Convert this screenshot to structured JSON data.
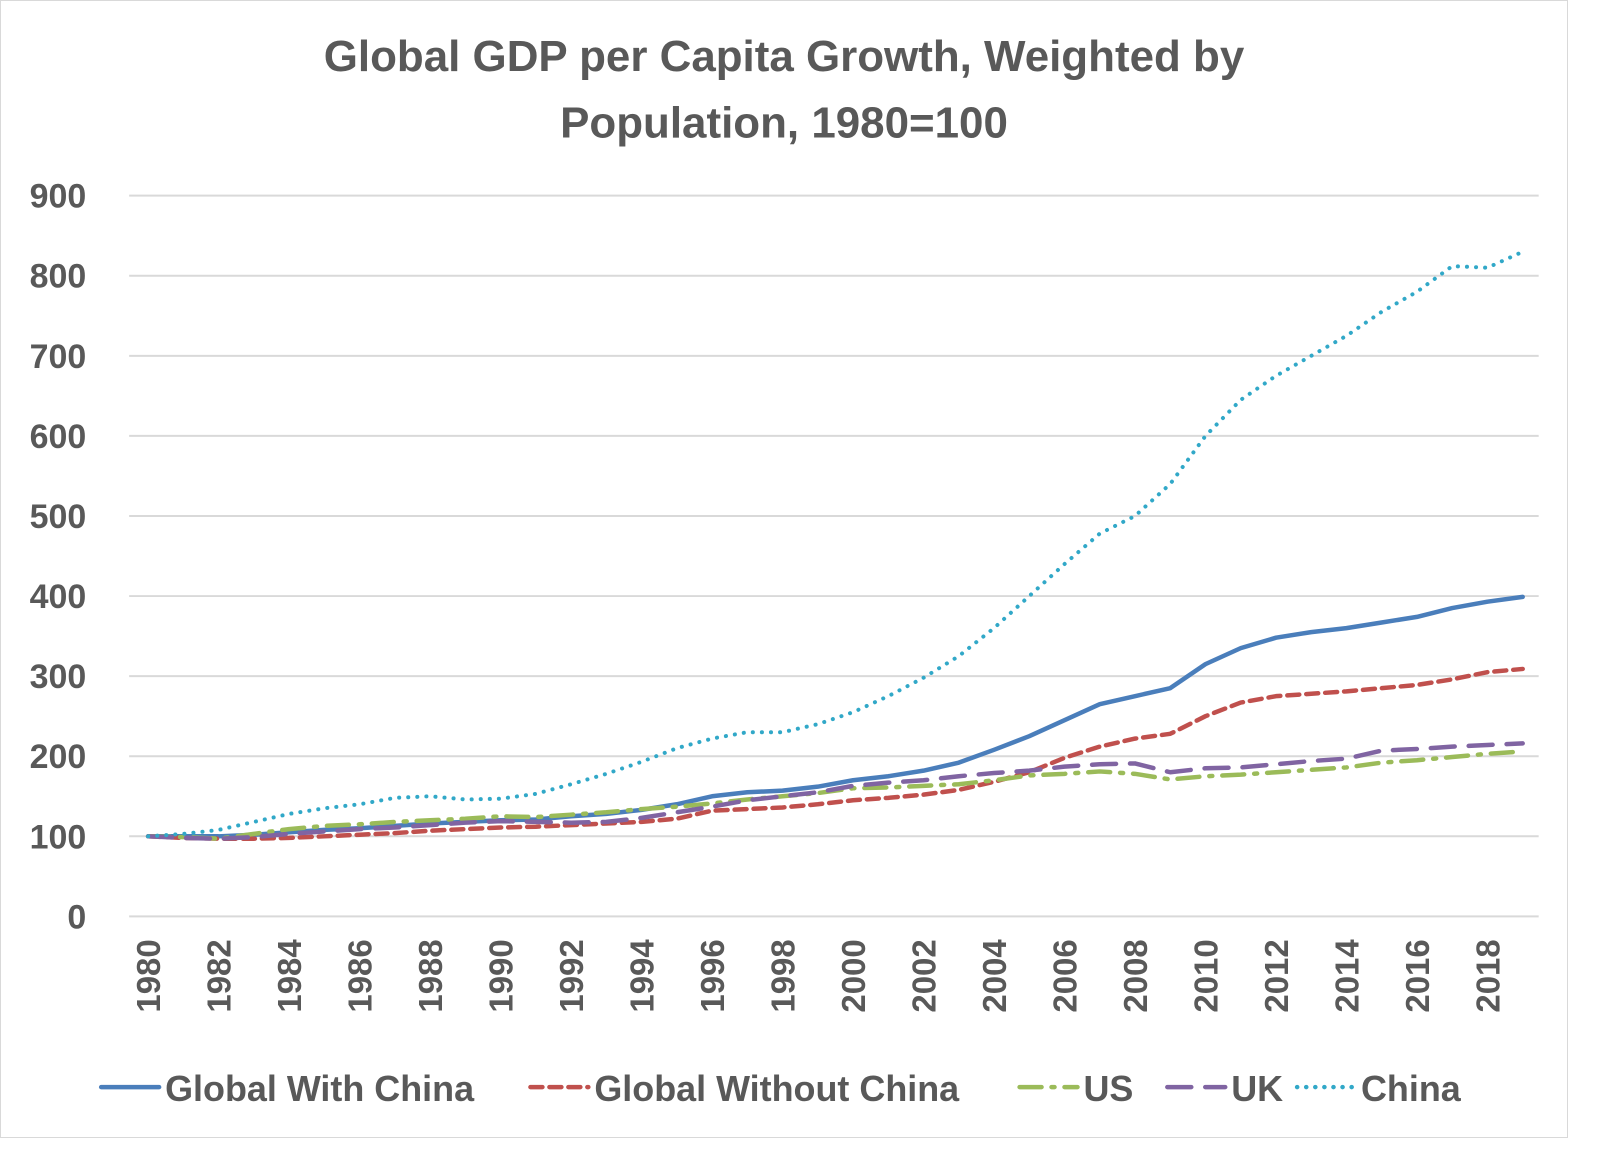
{
  "chart_data": {
    "type": "line",
    "title": "Global GDP per Capita Growth, Weighted by Population, 1980=100",
    "title_lines": [
      "Global GDP per Capita Growth, Weighted by",
      "Population, 1980=100"
    ],
    "xlabel": "",
    "ylabel": "",
    "ylim": [
      0,
      900
    ],
    "yticks": [
      "0",
      "100",
      "200",
      "300",
      "400",
      "500",
      "600",
      "700",
      "800",
      "900"
    ],
    "x": [
      1980,
      1981,
      1982,
      1983,
      1984,
      1985,
      1986,
      1987,
      1988,
      1989,
      1990,
      1991,
      1992,
      1993,
      1994,
      1995,
      1996,
      1997,
      1998,
      1999,
      2000,
      2001,
      2002,
      2003,
      2004,
      2005,
      2006,
      2007,
      2008,
      2009,
      2010,
      2011,
      2012,
      2013,
      2014,
      2015,
      2016,
      2017,
      2018,
      2019
    ],
    "xticks": [
      "1980",
      "1982",
      "1984",
      "1986",
      "1988",
      "1990",
      "1992",
      "1994",
      "1996",
      "1998",
      "2000",
      "2002",
      "2004",
      "2006",
      "2008",
      "2010",
      "2012",
      "2014",
      "2016",
      "2018"
    ],
    "grid": true,
    "legend_position": "bottom",
    "series": [
      {
        "name": "Global With China",
        "color": "#4a7ebb",
        "dash": "solid",
        "values": [
          100,
          100,
          100,
          102,
          105,
          108,
          110,
          113,
          116,
          118,
          120,
          121,
          125,
          128,
          133,
          140,
          150,
          155,
          157,
          162,
          170,
          175,
          182,
          192,
          208,
          225,
          245,
          265,
          275,
          285,
          315,
          335,
          348,
          355,
          360,
          367,
          374,
          385,
          393,
          399
        ]
      },
      {
        "name": "Global Without China",
        "color": "#c0504d",
        "dash": "dash",
        "values": [
          100,
          98,
          97,
          97,
          98,
          100,
          102,
          104,
          107,
          109,
          111,
          112,
          114,
          116,
          118,
          122,
          132,
          134,
          136,
          140,
          145,
          148,
          152,
          158,
          168,
          180,
          198,
          212,
          222,
          228,
          250,
          267,
          275,
          278,
          281,
          285,
          289,
          296,
          305,
          309
        ]
      },
      {
        "name": "US",
        "color": "#9bbb59",
        "dash": "dashdot",
        "values": [
          100,
          99,
          97,
          103,
          109,
          113,
          115,
          118,
          120,
          122,
          125,
          124,
          127,
          130,
          134,
          137,
          141,
          146,
          150,
          154,
          160,
          161,
          163,
          165,
          170,
          176,
          178,
          181,
          178,
          171,
          175,
          177,
          180,
          183,
          186,
          192,
          195,
          199,
          203,
          206
        ]
      },
      {
        "name": "UK",
        "color": "#8064a2",
        "dash": "longdash",
        "values": [
          100,
          98,
          97,
          99,
          103,
          106,
          109,
          111,
          114,
          117,
          119,
          118,
          117,
          118,
          123,
          130,
          137,
          145,
          150,
          155,
          163,
          167,
          170,
          175,
          179,
          182,
          187,
          190,
          191,
          180,
          185,
          186,
          190,
          194,
          197,
          207,
          209,
          212,
          214,
          216
        ]
      },
      {
        "name": "China",
        "color": "#31a8c8",
        "dash": "dot",
        "values": [
          100,
          103,
          108,
          118,
          128,
          135,
          140,
          148,
          150,
          146,
          147,
          153,
          165,
          178,
          193,
          210,
          222,
          230,
          230,
          240,
          255,
          275,
          298,
          325,
          360,
          400,
          440,
          478,
          500,
          540,
          600,
          645,
          675,
          700,
          725,
          755,
          780,
          812,
          810,
          830
        ]
      }
    ]
  }
}
